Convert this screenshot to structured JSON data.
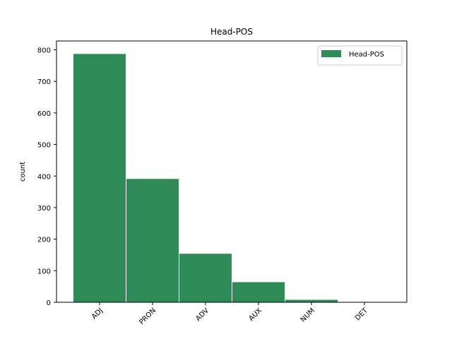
{
  "chart_data": {
    "type": "bar",
    "title": "Head-POS",
    "xlabel": "",
    "ylabel": "count",
    "categories": [
      "ADJ",
      "PRON",
      "ADV",
      "AUX",
      "NUM",
      "DET"
    ],
    "series": [
      {
        "name": "Head-POS",
        "values": [
          788,
          392,
          155,
          65,
          9,
          1
        ],
        "color": "#2e8b57"
      }
    ],
    "ylim": [
      0,
      828
    ],
    "yticks": [
      0,
      100,
      200,
      300,
      400,
      500,
      600,
      700,
      800
    ],
    "grid": false,
    "legend_position": "top-right",
    "bar_edge_color": "#ffffff"
  }
}
